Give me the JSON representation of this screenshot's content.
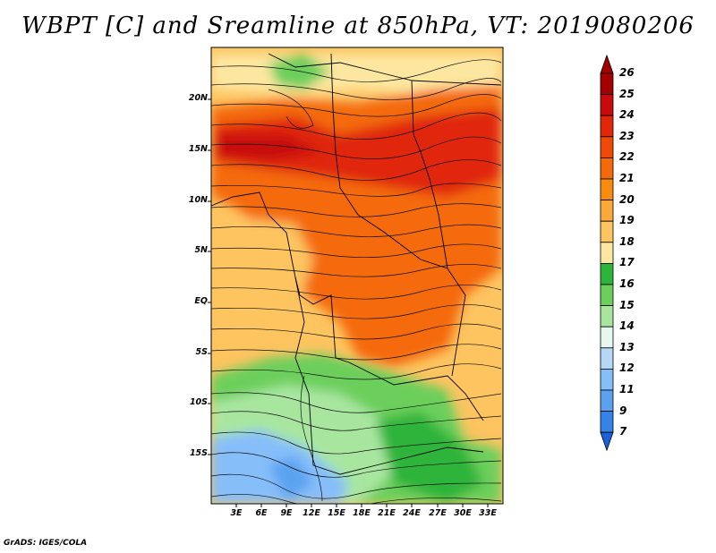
{
  "title": "WBPT [C] and Sreamline at 850hPa, VT: 2019080206",
  "credit": "GrADS: IGES/COLA",
  "map": {
    "lat_labels": [
      "20N",
      "15N",
      "10N",
      "5N",
      "EQ",
      "5S",
      "10S",
      "15S"
    ],
    "lon_labels": [
      "3E",
      "6E",
      "9E",
      "12E",
      "15E",
      "18E",
      "21E",
      "24E",
      "27E",
      "30E",
      "33E"
    ]
  },
  "colorbar": {
    "labels": [
      "26",
      "25",
      "24",
      "23",
      "22",
      "21",
      "20",
      "19",
      "18",
      "17",
      "16",
      "15",
      "14",
      "13",
      "12",
      "11",
      "9",
      "7"
    ],
    "colors": [
      "#a50000",
      "#c80a0a",
      "#e02808",
      "#ef4a08",
      "#f46a0a",
      "#f88c10",
      "#fba93a",
      "#fdc460",
      "#fde7a0",
      "#2fb43a",
      "#6ccf5c",
      "#a8e6a0",
      "#e6f7f0",
      "#b4d8f6",
      "#86befa",
      "#5aa2f0",
      "#3582e8",
      "#1a62d8"
    ]
  }
}
